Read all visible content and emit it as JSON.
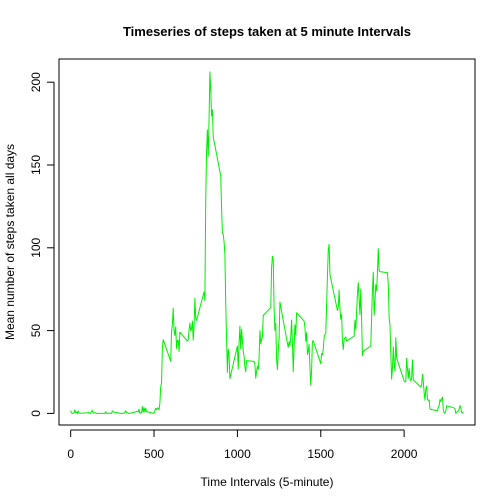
{
  "chart_data": {
    "type": "line",
    "title": "Timeseries of steps taken at 5 minute Intervals",
    "xlabel": "Time Intervals (5-minute)",
    "ylabel": "Mean number of steps taken all days",
    "xlim": [
      -70,
      2425
    ],
    "ylim": [
      -7,
      214
    ],
    "x_ticks": [
      0,
      500,
      1000,
      1500,
      2000
    ],
    "y_ticks": [
      0,
      50,
      100,
      150,
      200
    ],
    "series": [
      {
        "color": "#00ee00",
        "points": [
          [
            0,
            1.7
          ],
          [
            5,
            0.3
          ],
          [
            10,
            0.1
          ],
          [
            15,
            0.2
          ],
          [
            20,
            0.1
          ],
          [
            25,
            2.1
          ],
          [
            30,
            0.5
          ],
          [
            35,
            0.9
          ],
          [
            40,
            0.0
          ],
          [
            45,
            1.5
          ],
          [
            50,
            0.3
          ],
          [
            55,
            0.1
          ],
          [
            100,
            0.3
          ],
          [
            105,
            0.7
          ],
          [
            110,
            0.2
          ],
          [
            115,
            0.3
          ],
          [
            120,
            0.0
          ],
          [
            125,
            1.1
          ],
          [
            130,
            1.8
          ],
          [
            135,
            0.2
          ],
          [
            140,
            0.2
          ],
          [
            145,
            0.4
          ],
          [
            150,
            0.3
          ],
          [
            155,
            0.0
          ],
          [
            200,
            0.0
          ],
          [
            205,
            0.0
          ],
          [
            210,
            1.1
          ],
          [
            215,
            0.0
          ],
          [
            220,
            0.0
          ],
          [
            225,
            0.1
          ],
          [
            230,
            0.0
          ],
          [
            235,
            0.2
          ],
          [
            240,
            0.0
          ],
          [
            245,
            0.0
          ],
          [
            250,
            1.5
          ],
          [
            255,
            0.9
          ],
          [
            300,
            0.0
          ],
          [
            305,
            0.0
          ],
          [
            310,
            0.0
          ],
          [
            315,
            0.0
          ],
          [
            320,
            0.2
          ],
          [
            325,
            0.6
          ],
          [
            330,
            1.6
          ],
          [
            335,
            0.6
          ],
          [
            340,
            0.5
          ],
          [
            345,
            0.1
          ],
          [
            350,
            0.0
          ],
          [
            355,
            0.0
          ],
          [
            400,
            1.2
          ],
          [
            405,
            0.9
          ],
          [
            410,
            2.6
          ],
          [
            415,
            0.0
          ],
          [
            420,
            0.3
          ],
          [
            425,
            0.4
          ],
          [
            430,
            4.1
          ],
          [
            435,
            0.7
          ],
          [
            440,
            3.5
          ],
          [
            445,
            0.8
          ],
          [
            450,
            3.1
          ],
          [
            455,
            1.1
          ],
          [
            500,
            0.0
          ],
          [
            505,
            1.6
          ],
          [
            510,
            3.0
          ],
          [
            515,
            2.2
          ],
          [
            520,
            3.3
          ],
          [
            525,
            3.0
          ],
          [
            530,
            2.1
          ],
          [
            535,
            6.1
          ],
          [
            540,
            16.0
          ],
          [
            545,
            18.3
          ],
          [
            550,
            39.5
          ],
          [
            555,
            44.5
          ],
          [
            600,
            31.5
          ],
          [
            605,
            49.3
          ],
          [
            610,
            53.8
          ],
          [
            615,
            63.5
          ],
          [
            620,
            50.0
          ],
          [
            625,
            47.1
          ],
          [
            630,
            52.2
          ],
          [
            635,
            39.3
          ],
          [
            640,
            44.0
          ],
          [
            645,
            44.2
          ],
          [
            650,
            37.4
          ],
          [
            655,
            49.0
          ],
          [
            700,
            43.8
          ],
          [
            705,
            44.4
          ],
          [
            710,
            50.5
          ],
          [
            715,
            54.5
          ],
          [
            720,
            49.9
          ],
          [
            725,
            51.0
          ],
          [
            730,
            55.7
          ],
          [
            735,
            44.3
          ],
          [
            740,
            52.3
          ],
          [
            745,
            69.5
          ],
          [
            750,
            57.8
          ],
          [
            755,
            56.2
          ],
          [
            800,
            73.4
          ],
          [
            805,
            68.2
          ],
          [
            810,
            129.4
          ],
          [
            815,
            157.5
          ],
          [
            820,
            171.2
          ],
          [
            825,
            155.4
          ],
          [
            830,
            177.3
          ],
          [
            835,
            206.2
          ],
          [
            840,
            195.9
          ],
          [
            845,
            179.6
          ],
          [
            850,
            183.4
          ],
          [
            855,
            167.0
          ],
          [
            900,
            143.5
          ],
          [
            905,
            124.0
          ],
          [
            910,
            109.1
          ],
          [
            915,
            108.1
          ],
          [
            920,
            103.7
          ],
          [
            925,
            95.97
          ],
          [
            930,
            66.2
          ],
          [
            935,
            45.2
          ],
          [
            940,
            24.8
          ],
          [
            945,
            38.8
          ],
          [
            950,
            34.98
          ],
          [
            955,
            21.1
          ],
          [
            1000,
            40.6
          ],
          [
            1005,
            26.98
          ],
          [
            1010,
            42.4
          ],
          [
            1015,
            52.7
          ],
          [
            1020,
            38.9
          ],
          [
            1025,
            50.8
          ],
          [
            1030,
            44.3
          ],
          [
            1035,
            37.4
          ],
          [
            1040,
            34.7
          ],
          [
            1045,
            28.3
          ],
          [
            1050,
            25.1
          ],
          [
            1055,
            31.9
          ],
          [
            1100,
            31.4
          ],
          [
            1105,
            29.7
          ],
          [
            1110,
            21.3
          ],
          [
            1115,
            25.5
          ],
          [
            1120,
            28.4
          ],
          [
            1125,
            26.5
          ],
          [
            1130,
            33.4
          ],
          [
            1135,
            49.98
          ],
          [
            1140,
            42.0
          ],
          [
            1145,
            44.6
          ],
          [
            1150,
            46.0
          ],
          [
            1155,
            59.2
          ],
          [
            1200,
            63.9
          ],
          [
            1205,
            87.7
          ],
          [
            1210,
            94.8
          ],
          [
            1215,
            92.8
          ],
          [
            1220,
            63.4
          ],
          [
            1225,
            50.2
          ],
          [
            1230,
            54.5
          ],
          [
            1235,
            32.4
          ],
          [
            1240,
            26.5
          ],
          [
            1245,
            37.7
          ],
          [
            1250,
            45.1
          ],
          [
            1255,
            67.3
          ],
          [
            1300,
            42.3
          ],
          [
            1305,
            39.9
          ],
          [
            1310,
            43.3
          ],
          [
            1315,
            40.98
          ],
          [
            1320,
            46.2
          ],
          [
            1325,
            56.4
          ],
          [
            1330,
            42.8
          ],
          [
            1335,
            25.1
          ],
          [
            1340,
            39.96
          ],
          [
            1345,
            53.5
          ],
          [
            1350,
            47.3
          ],
          [
            1355,
            60.8
          ],
          [
            1400,
            55.8
          ],
          [
            1405,
            51.96
          ],
          [
            1410,
            43.6
          ],
          [
            1415,
            48.7
          ],
          [
            1420,
            35.5
          ],
          [
            1425,
            37.5
          ],
          [
            1430,
            41.8
          ],
          [
            1435,
            27.5
          ],
          [
            1440,
            17.1
          ],
          [
            1445,
            26.1
          ],
          [
            1450,
            43.6
          ],
          [
            1455,
            43.8
          ],
          [
            1500,
            30.0
          ],
          [
            1505,
            36.1
          ],
          [
            1510,
            35.5
          ],
          [
            1515,
            38.8
          ],
          [
            1520,
            45.96
          ],
          [
            1525,
            47.8
          ],
          [
            1530,
            48.1
          ],
          [
            1535,
            65.3
          ],
          [
            1540,
            82.9
          ],
          [
            1545,
            98.7
          ],
          [
            1550,
            102.1
          ],
          [
            1555,
            83.96
          ],
          [
            1600,
            62.1
          ],
          [
            1605,
            64.1
          ],
          [
            1610,
            74.5
          ],
          [
            1615,
            63.2
          ],
          [
            1620,
            56.9
          ],
          [
            1625,
            59.8
          ],
          [
            1630,
            43.9
          ],
          [
            1635,
            38.6
          ],
          [
            1640,
            44.7
          ],
          [
            1645,
            45.5
          ],
          [
            1650,
            46.2
          ],
          [
            1655,
            43.7
          ],
          [
            1700,
            46.6
          ],
          [
            1705,
            56.3
          ],
          [
            1710,
            50.7
          ],
          [
            1715,
            61.2
          ],
          [
            1720,
            72.7
          ],
          [
            1725,
            78.9
          ],
          [
            1730,
            68.9
          ],
          [
            1735,
            59.7
          ],
          [
            1740,
            75.1
          ],
          [
            1745,
            56.5
          ],
          [
            1750,
            34.8
          ],
          [
            1755,
            37.5
          ],
          [
            1800,
            40.7
          ],
          [
            1805,
            58.0
          ],
          [
            1810,
            74.7
          ],
          [
            1815,
            85.3
          ],
          [
            1820,
            59.3
          ],
          [
            1825,
            67.8
          ],
          [
            1830,
            77.7
          ],
          [
            1835,
            74.2
          ],
          [
            1840,
            85.3
          ],
          [
            1845,
            99.5
          ],
          [
            1850,
            86.6
          ],
          [
            1855,
            85.6
          ],
          [
            1900,
            84.9
          ],
          [
            1905,
            77.8
          ],
          [
            1910,
            58.0
          ],
          [
            1915,
            53.4
          ],
          [
            1920,
            36.3
          ],
          [
            1925,
            20.7
          ],
          [
            1930,
            27.4
          ],
          [
            1935,
            40.0
          ],
          [
            1940,
            30.2
          ],
          [
            1945,
            25.5
          ],
          [
            1950,
            45.7
          ],
          [
            1955,
            33.5
          ],
          [
            2000,
            19.6
          ],
          [
            2005,
            19.0
          ],
          [
            2010,
            19.3
          ],
          [
            2015,
            33.3
          ],
          [
            2020,
            26.8
          ],
          [
            2025,
            21.2
          ],
          [
            2030,
            27.3
          ],
          [
            2035,
            21.3
          ],
          [
            2040,
            19.5
          ],
          [
            2045,
            21.3
          ],
          [
            2050,
            32.3
          ],
          [
            2055,
            20.2
          ],
          [
            2100,
            15.9
          ],
          [
            2105,
            17.2
          ],
          [
            2110,
            23.5
          ],
          [
            2115,
            19.2
          ],
          [
            2120,
            12.5
          ],
          [
            2125,
            8.0
          ],
          [
            2130,
            14.7
          ],
          [
            2135,
            16.3
          ],
          [
            2140,
            8.7
          ],
          [
            2145,
            7.8
          ],
          [
            2150,
            8.1
          ],
          [
            2155,
            2.6
          ],
          [
            2200,
            1.5
          ],
          [
            2205,
            3.7
          ],
          [
            2210,
            4.8
          ],
          [
            2215,
            8.5
          ],
          [
            2220,
            7.1
          ],
          [
            2225,
            8.7
          ],
          [
            2230,
            9.8
          ],
          [
            2235,
            2.2
          ],
          [
            2240,
            0.3
          ],
          [
            2245,
            0.1
          ],
          [
            2250,
            1.6
          ],
          [
            2255,
            4.6
          ],
          [
            2300,
            3.3
          ],
          [
            2305,
            2.8
          ],
          [
            2310,
            0.0
          ],
          [
            2315,
            0.8
          ],
          [
            2320,
            1.0
          ],
          [
            2325,
            1.6
          ],
          [
            2330,
            2.6
          ],
          [
            2335,
            4.7
          ],
          [
            2340,
            3.3
          ],
          [
            2345,
            0.6
          ],
          [
            2350,
            0.2
          ],
          [
            2355,
            1.1
          ]
        ]
      }
    ],
    "grid": false,
    "legend": "none"
  }
}
